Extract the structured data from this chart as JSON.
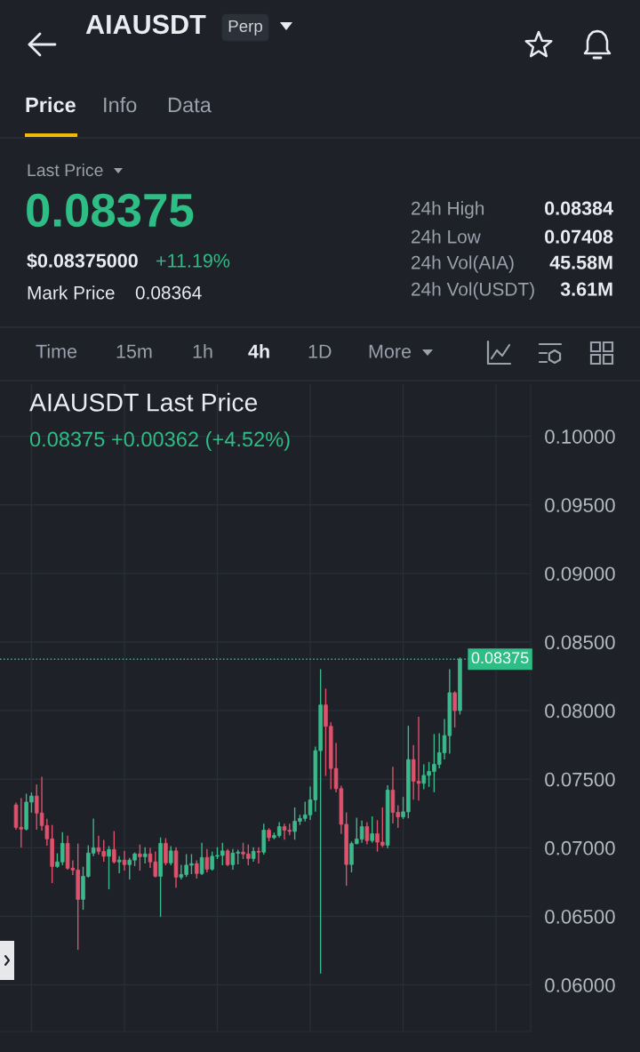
{
  "chart_data": {
    "type": "candlestick",
    "title": "AIAUSDT Last Price",
    "subtitle": "0.08375 +0.00362 (+4.52%)",
    "annotations": [
      "AIAUSDT",
      "Perp",
      "Price",
      "Info",
      "Data",
      "Last Price",
      "0.08375",
      "$0.08375000",
      "+11.19%",
      "Mark Price",
      "0.08364",
      "24h High",
      "0.08384",
      "24h Low",
      "0.07408",
      "24h Vol(AIA)",
      "45.58M",
      "24h Vol(USDT)",
      "3.61M",
      "Time",
      "15m",
      "1h",
      "4h",
      "1D",
      "More"
    ],
    "categories": [
      null,
      null,
      null,
      null,
      null,
      null,
      null,
      null,
      null,
      null,
      null,
      null,
      null,
      null,
      null,
      null,
      null,
      null,
      null,
      null,
      null,
      null,
      null,
      null,
      null,
      null,
      null,
      null,
      null,
      null,
      null,
      null,
      null,
      null,
      null,
      null,
      null,
      null,
      null,
      null,
      null,
      null,
      null,
      null,
      null,
      null,
      null,
      null,
      null,
      null,
      null,
      null,
      null,
      null,
      null,
      null,
      null,
      null,
      null,
      null,
      null,
      null,
      null,
      null,
      null,
      null,
      null,
      null,
      null,
      null,
      null,
      null,
      null,
      null,
      null,
      null,
      null,
      null,
      null,
      null,
      null,
      null,
      null,
      null,
      null,
      null,
      null
    ],
    "ohlc": [
      [
        0.07312,
        0.07325,
        0.07136,
        0.07149
      ],
      [
        0.07149,
        0.07357,
        0.07007,
        0.07136
      ],
      [
        0.07136,
        0.0739,
        0.0713,
        0.07333
      ],
      [
        0.07333,
        0.07398,
        0.0726,
        0.07377
      ],
      [
        0.07377,
        0.07457,
        0.07136,
        0.07253
      ],
      [
        0.07253,
        0.07513,
        0.0713,
        0.07162
      ],
      [
        0.07162,
        0.07207,
        0.07019,
        0.07065
      ],
      [
        0.07065,
        0.07162,
        0.06747,
        0.06864
      ],
      [
        0.06864,
        0.06955,
        0.06858,
        0.06897
      ],
      [
        0.06897,
        0.0711,
        0.06877,
        0.07032
      ],
      [
        0.07032,
        0.07084,
        0.06845,
        0.06851
      ],
      [
        0.06851,
        0.06903,
        0.06806,
        0.06838
      ],
      [
        0.06838,
        0.07026,
        0.0626,
        0.06624
      ],
      [
        0.06624,
        0.06857,
        0.06552,
        0.06792
      ],
      [
        0.06792,
        0.07013,
        0.06787,
        0.06961
      ],
      [
        0.06961,
        0.07208,
        0.06943,
        0.07
      ],
      [
        0.07,
        0.07084,
        0.06955,
        0.06974
      ],
      [
        0.06974,
        0.07052,
        0.06903,
        0.06938
      ],
      [
        0.06938,
        0.07008,
        0.06701,
        0.06987
      ],
      [
        0.06987,
        0.07117,
        0.0689,
        0.06897
      ],
      [
        0.06897,
        0.06935,
        0.06819,
        0.0691
      ],
      [
        0.0691,
        0.06974,
        0.06838,
        0.06877
      ],
      [
        0.06877,
        0.06922,
        0.06773,
        0.0691
      ],
      [
        0.0691,
        0.06961,
        0.06871,
        0.06955
      ],
      [
        0.06955,
        0.07019,
        0.06838,
        0.06935
      ],
      [
        0.06935,
        0.07,
        0.0689,
        0.06955
      ],
      [
        0.06955,
        0.06994,
        0.06858,
        0.06897
      ],
      [
        0.06897,
        0.06968,
        0.06787,
        0.06792
      ],
      [
        0.06792,
        0.07071,
        0.065,
        0.07032
      ],
      [
        0.07032,
        0.07065,
        0.06877,
        0.0689
      ],
      [
        0.0689,
        0.07008,
        0.06877,
        0.06977
      ],
      [
        0.06977,
        0.07,
        0.06714,
        0.06786
      ],
      [
        0.06786,
        0.06871,
        0.06773,
        0.06805
      ],
      [
        0.06805,
        0.06949,
        0.06792,
        0.06873
      ],
      [
        0.06873,
        0.06949,
        0.06812,
        0.06884
      ],
      [
        0.06884,
        0.06903,
        0.0678,
        0.06812
      ],
      [
        0.06812,
        0.07032,
        0.06805,
        0.06929
      ],
      [
        0.06929,
        0.06987,
        0.06825,
        0.06844
      ],
      [
        0.06844,
        0.06968,
        0.06838,
        0.06938
      ],
      [
        0.06938,
        0.07,
        0.06922,
        0.06944
      ],
      [
        0.06944,
        0.07032,
        0.06877,
        0.06977
      ],
      [
        0.06977,
        0.06987,
        0.06871,
        0.06877
      ],
      [
        0.06877,
        0.06987,
        0.06845,
        0.06961
      ],
      [
        0.06961,
        0.06981,
        0.06884,
        0.06968
      ],
      [
        0.06968,
        0.07032,
        0.06922,
        0.06955
      ],
      [
        0.06955,
        0.07019,
        0.06877,
        0.06922
      ],
      [
        0.06922,
        0.07,
        0.06903,
        0.06974
      ],
      [
        0.06974,
        0.07,
        0.0689,
        0.06968
      ],
      [
        0.06968,
        0.07171,
        0.06955,
        0.07128
      ],
      [
        0.07128,
        0.07138,
        0.07052,
        0.07074
      ],
      [
        0.07074,
        0.07106,
        0.07067,
        0.07089
      ],
      [
        0.07089,
        0.07182,
        0.0708,
        0.07154
      ],
      [
        0.07154,
        0.07171,
        0.07063,
        0.07128
      ],
      [
        0.07128,
        0.07171,
        0.07095,
        0.07119
      ],
      [
        0.07119,
        0.0729,
        0.07063,
        0.07193
      ],
      [
        0.07193,
        0.07236,
        0.07171,
        0.07214
      ],
      [
        0.07214,
        0.07331,
        0.07197,
        0.0724
      ],
      [
        0.0724,
        0.07441,
        0.07208,
        0.07349
      ],
      [
        0.07349,
        0.07734,
        0.07268,
        0.07708
      ],
      [
        0.07708,
        0.08297,
        0.06088,
        0.08041
      ],
      [
        0.08041,
        0.08156,
        0.07528,
        0.07885
      ],
      [
        0.07885,
        0.0791,
        0.07431,
        0.07578
      ],
      [
        0.07578,
        0.0776,
        0.07409,
        0.07431
      ],
      [
        0.07431,
        0.07448,
        0.07106,
        0.07171
      ],
      [
        0.07171,
        0.07253,
        0.06727,
        0.06878
      ],
      [
        0.06878,
        0.07041,
        0.06825,
        0.0703
      ],
      [
        0.0703,
        0.07214,
        0.0703,
        0.07063
      ],
      [
        0.07063,
        0.07193,
        0.07041,
        0.07154
      ],
      [
        0.07154,
        0.07182,
        0.0703,
        0.07052
      ],
      [
        0.07052,
        0.07225,
        0.07041,
        0.07102
      ],
      [
        0.07102,
        0.07197,
        0.06976,
        0.07041
      ],
      [
        0.07041,
        0.0729,
        0.07008,
        0.07019
      ],
      [
        0.07019,
        0.07452,
        0.07,
        0.0742
      ],
      [
        0.0742,
        0.07586,
        0.07182,
        0.07258
      ],
      [
        0.07258,
        0.07305,
        0.07149,
        0.07225
      ],
      [
        0.07225,
        0.07366,
        0.07214,
        0.07262
      ],
      [
        0.07262,
        0.07885,
        0.07219,
        0.07643
      ],
      [
        0.07643,
        0.07745,
        0.07355,
        0.07485
      ],
      [
        0.07485,
        0.0795,
        0.07349,
        0.0747
      ],
      [
        0.0747,
        0.07604,
        0.07431,
        0.07528
      ],
      [
        0.07528,
        0.07621,
        0.07448,
        0.07556
      ],
      [
        0.07556,
        0.07825,
        0.07409,
        0.07608
      ],
      [
        0.07608,
        0.07831,
        0.07583,
        0.07693
      ],
      [
        0.07693,
        0.07935,
        0.07649,
        0.07818
      ],
      [
        0.07818,
        0.08297,
        0.0769,
        0.0813
      ],
      [
        0.0813,
        0.08136,
        0.07881,
        0.08
      ],
      [
        0.08,
        0.08384,
        0.07976,
        0.08375
      ]
    ],
    "colors": [
      "#dd526c",
      "#dd526c",
      "#3bb98b",
      "#3bb98b",
      "#dd526c",
      "#dd526c",
      "#dd526c",
      "#dd526c",
      "#3bb98b",
      "#3bb98b",
      "#dd526c",
      "#dd526c",
      "#dd526c",
      "#3bb98b",
      "#3bb98b",
      "#3bb98b",
      "#dd526c",
      "#dd526c",
      "#3bb98b",
      "#dd526c",
      "#3bb98b",
      "#dd526c",
      "#3bb98b",
      "#3bb98b",
      "#dd526c",
      "#3bb98b",
      "#dd526c",
      "#dd526c",
      "#3bb98b",
      "#dd526c",
      "#3bb98b",
      "#dd526c",
      "#3bb98b",
      "#3bb98b",
      "#3bb98b",
      "#dd526c",
      "#3bb98b",
      "#dd526c",
      "#3bb98b",
      "#3bb98b",
      "#3bb98b",
      "#dd526c",
      "#3bb98b",
      "#3bb98b",
      "#dd526c",
      "#dd526c",
      "#3bb98b",
      "#dd526c",
      "#3bb98b",
      "#dd526c",
      "#3bb98b",
      "#3bb98b",
      "#dd526c",
      "#dd526c",
      "#3bb98b",
      "#3bb98b",
      "#3bb98b",
      "#3bb98b",
      "#3bb98b",
      "#3bb98b",
      "#dd526c",
      "#dd526c",
      "#dd526c",
      "#dd526c",
      "#dd526c",
      "#3bb98b",
      "#3bb98b",
      "#3bb98b",
      "#dd526c",
      "#3bb98b",
      "#dd526c",
      "#dd526c",
      "#3bb98b",
      "#dd526c",
      "#dd526c",
      "#3bb98b",
      "#3bb98b",
      "#dd526c",
      "#dd526c",
      "#3bb98b",
      "#3bb98b",
      "#3bb98b",
      "#3bb98b",
      "#3bb98b",
      "#3bb98b",
      "#dd526c",
      "#3bb98b"
    ],
    "ylim": [
      0.0566,
      0.1038
    ],
    "yticks": [
      {
        "value": 0.06,
        "label": "0.06000"
      },
      {
        "value": 0.065,
        "label": "0.06500"
      },
      {
        "value": 0.07,
        "label": "0.07000"
      },
      {
        "value": 0.075,
        "label": "0.07500"
      },
      {
        "value": 0.08,
        "label": "0.08000"
      },
      {
        "value": 0.085,
        "label": "0.08500"
      },
      {
        "value": 0.09,
        "label": "0.09000"
      },
      {
        "value": 0.095,
        "label": "0.09500"
      },
      {
        "value": 0.1,
        "label": "0.10000"
      }
    ],
    "ref_lines": [
      {
        "axis": "y",
        "value": 0.08375,
        "label": "0.08375",
        "color": "#2ebd85",
        "line_style": "dotted"
      }
    ],
    "grid": true,
    "tick_labels": "y"
  }
}
